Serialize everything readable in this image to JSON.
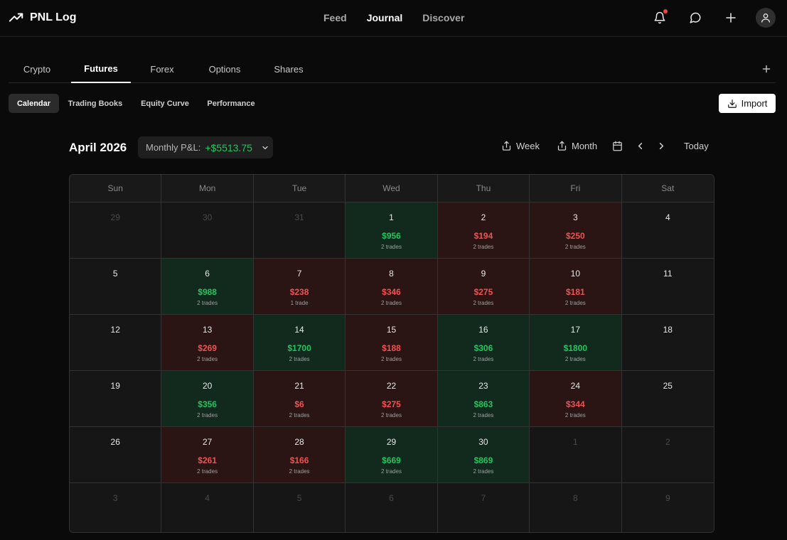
{
  "app": {
    "title": "PNL Log"
  },
  "nav": {
    "items": [
      "Feed",
      "Journal",
      "Discover"
    ],
    "active": "Journal"
  },
  "market_tabs": {
    "items": [
      "Crypto",
      "Futures",
      "Forex",
      "Options",
      "Shares"
    ],
    "active": "Futures"
  },
  "sub_tabs": {
    "items": [
      "Calendar",
      "Trading Books",
      "Equity Curve",
      "Performance"
    ],
    "active": "Calendar"
  },
  "import_label": "Import",
  "calendar": {
    "month": "April 2026",
    "monthly_pnl_label": "Monthly P&L:",
    "monthly_pnl_value": "+$5513.75",
    "week_label": "Week",
    "month_label": "Month",
    "today_label": "Today",
    "weekdays": [
      "Sun",
      "Mon",
      "Tue",
      "Wed",
      "Thu",
      "Fri",
      "Sat"
    ],
    "days": [
      {
        "d": "29",
        "muted": true
      },
      {
        "d": "30",
        "muted": true
      },
      {
        "d": "31",
        "muted": true
      },
      {
        "d": "1",
        "pnl": "$956",
        "trades": "2 trades",
        "status": "win"
      },
      {
        "d": "2",
        "pnl": "$194",
        "trades": "2 trades",
        "status": "loss"
      },
      {
        "d": "3",
        "pnl": "$250",
        "trades": "2 trades",
        "status": "loss"
      },
      {
        "d": "4"
      },
      {
        "d": "5"
      },
      {
        "d": "6",
        "pnl": "$988",
        "trades": "2 trades",
        "status": "win"
      },
      {
        "d": "7",
        "pnl": "$238",
        "trades": "1 trade",
        "status": "loss"
      },
      {
        "d": "8",
        "pnl": "$346",
        "trades": "2 trades",
        "status": "loss"
      },
      {
        "d": "9",
        "pnl": "$275",
        "trades": "2 trades",
        "status": "loss"
      },
      {
        "d": "10",
        "pnl": "$181",
        "trades": "2 trades",
        "status": "loss"
      },
      {
        "d": "11"
      },
      {
        "d": "12"
      },
      {
        "d": "13",
        "pnl": "$269",
        "trades": "2 trades",
        "status": "loss"
      },
      {
        "d": "14",
        "pnl": "$1700",
        "trades": "2 trades",
        "status": "win"
      },
      {
        "d": "15",
        "pnl": "$188",
        "trades": "2 trades",
        "status": "loss"
      },
      {
        "d": "16",
        "pnl": "$306",
        "trades": "2 trades",
        "status": "win"
      },
      {
        "d": "17",
        "pnl": "$1800",
        "trades": "2 trades",
        "status": "win"
      },
      {
        "d": "18"
      },
      {
        "d": "19"
      },
      {
        "d": "20",
        "pnl": "$356",
        "trades": "2 trades",
        "status": "win"
      },
      {
        "d": "21",
        "pnl": "$6",
        "trades": "2 trades",
        "status": "loss"
      },
      {
        "d": "22",
        "pnl": "$275",
        "trades": "2 trades",
        "status": "loss"
      },
      {
        "d": "23",
        "pnl": "$863",
        "trades": "2 trades",
        "status": "win"
      },
      {
        "d": "24",
        "pnl": "$344",
        "trades": "2 trades",
        "status": "loss"
      },
      {
        "d": "25"
      },
      {
        "d": "26"
      },
      {
        "d": "27",
        "pnl": "$261",
        "trades": "2 trades",
        "status": "loss"
      },
      {
        "d": "28",
        "pnl": "$166",
        "trades": "2 trades",
        "status": "loss"
      },
      {
        "d": "29",
        "pnl": "$669",
        "trades": "2 trades",
        "status": "win"
      },
      {
        "d": "30",
        "pnl": "$869",
        "trades": "2 trades",
        "status": "win"
      },
      {
        "d": "1",
        "muted": true
      },
      {
        "d": "2",
        "muted": true
      },
      {
        "d": "3",
        "muted": true
      },
      {
        "d": "4",
        "muted": true
      },
      {
        "d": "5",
        "muted": true
      },
      {
        "d": "6",
        "muted": true
      },
      {
        "d": "7",
        "muted": true
      },
      {
        "d": "8",
        "muted": true
      },
      {
        "d": "9",
        "muted": true
      }
    ]
  },
  "colors": {
    "win": "#22c55e",
    "loss": "#f05252",
    "notification_dot": "#ef4444",
    "background": "#0a0a0a"
  },
  "icons": [
    "trending-up-icon",
    "bell-icon",
    "chat-icon",
    "plus-icon",
    "user-icon",
    "download-icon",
    "share-icon",
    "calendar-icon",
    "chevron-left-icon",
    "chevron-right-icon",
    "chevron-down-icon"
  ]
}
